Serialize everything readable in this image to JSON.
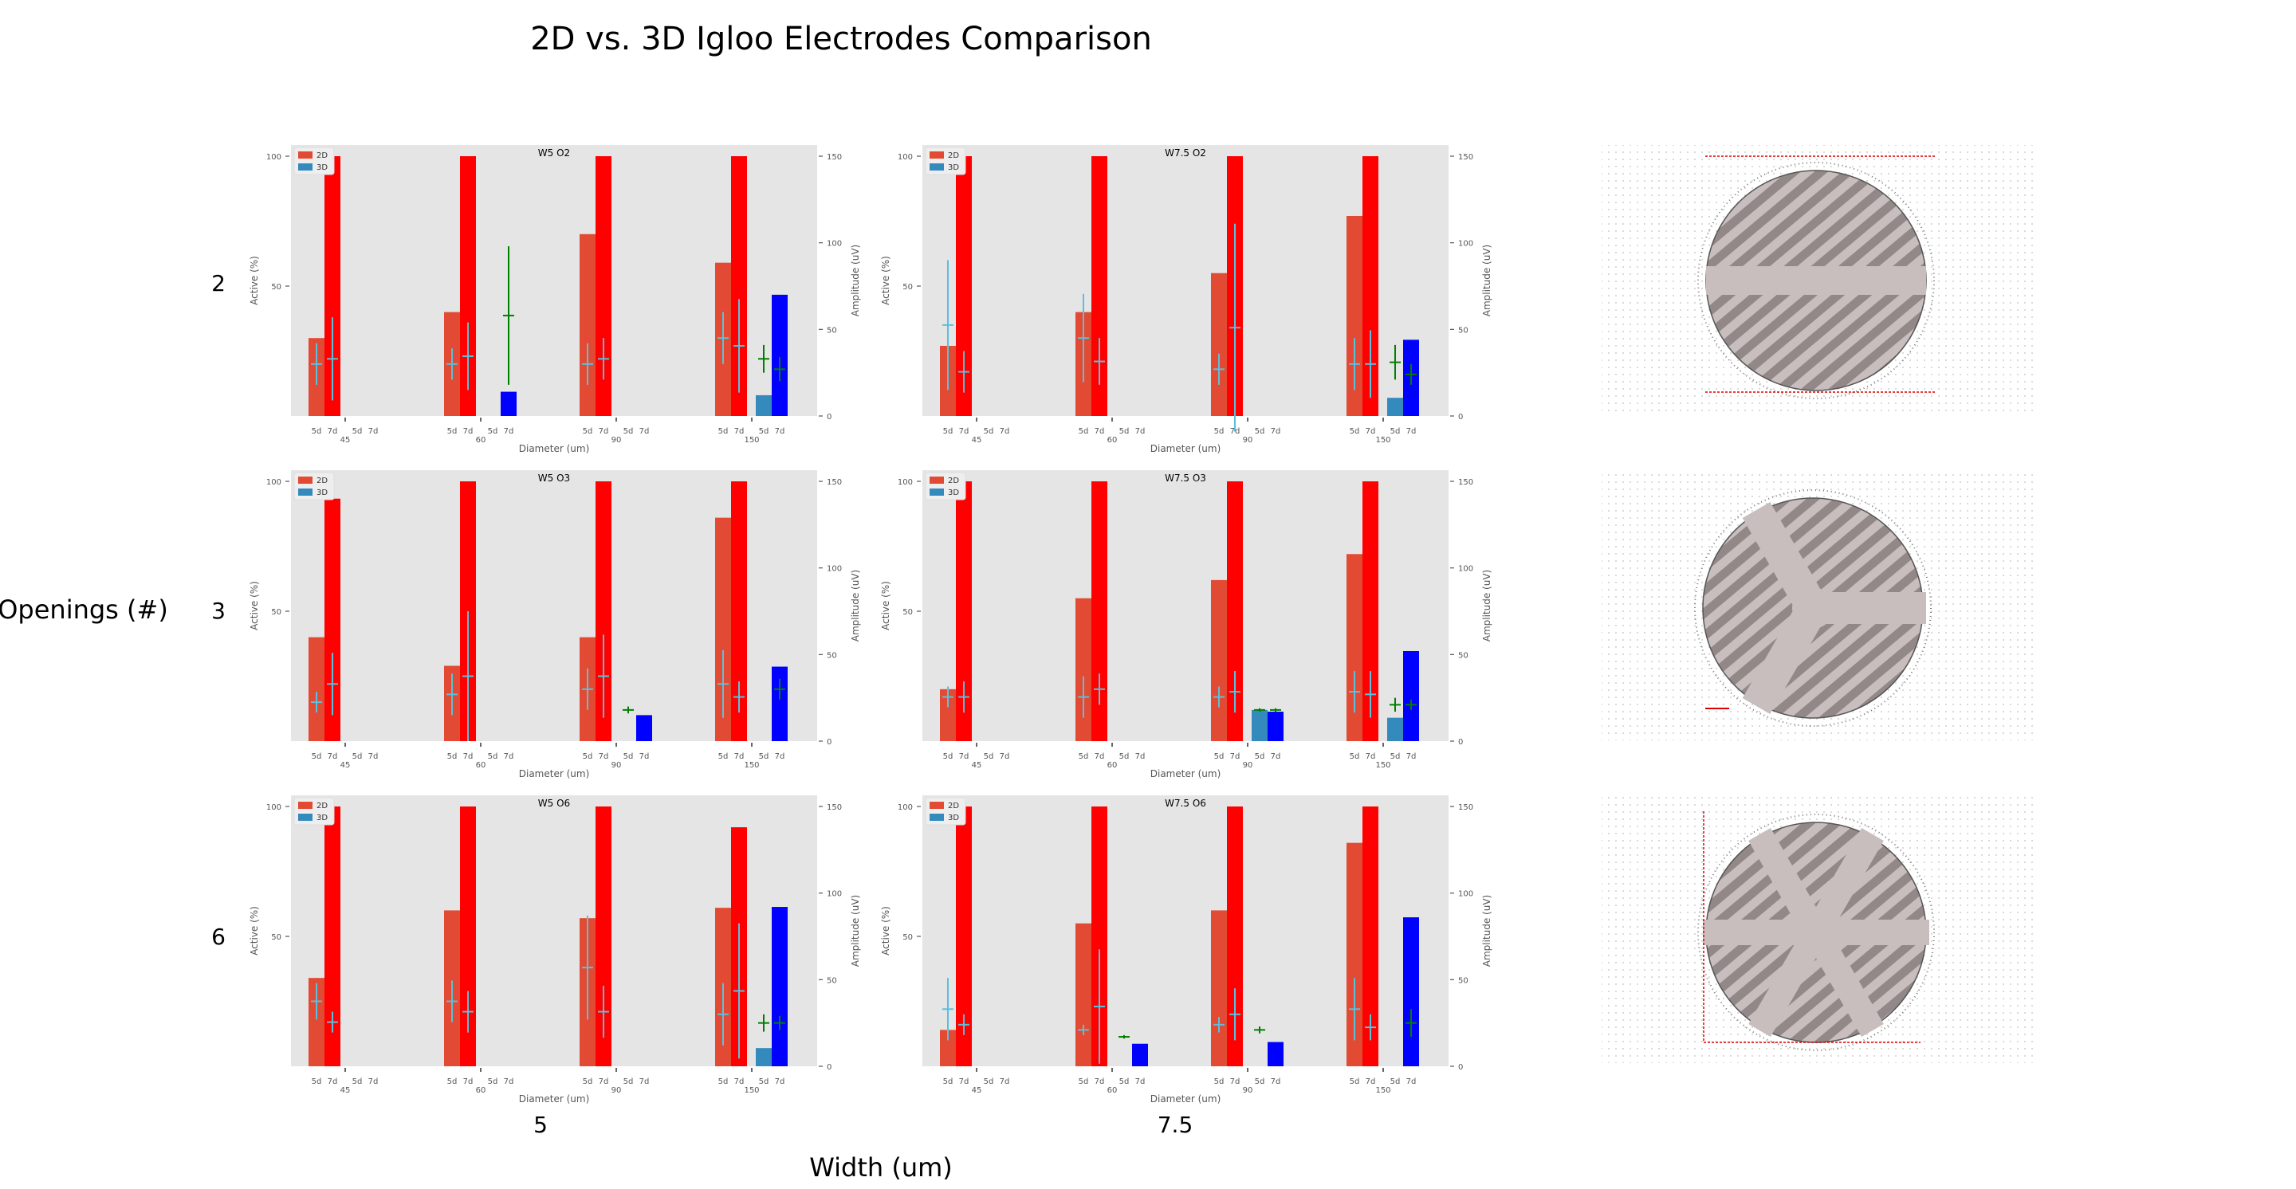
{
  "figure": {
    "title": "2D vs. 3D Igloo Electrodes Comparison",
    "row_axis_label": "Openings (#)",
    "col_axis_label": "Width (um)",
    "row_labels": [
      "2",
      "3",
      "6"
    ],
    "col_labels": [
      "5",
      "7.5"
    ]
  },
  "colors": {
    "panel_bg": "#e5e5e5",
    "active_2d": "#e24a33",
    "active_3d": "#348abd",
    "amp_2d": "#ff0000",
    "amp_3d": "#0000ff",
    "err_active": "#5bc0de",
    "err_amp_3d": "#008000",
    "axis_text": "#555555",
    "electrode_disc": "#c8bebe",
    "electrode_hatch": "#8a7f7f"
  },
  "legend": {
    "entries": [
      "2D",
      "3D"
    ]
  },
  "chart_data": [
    {
      "type": "bar",
      "title": "W5 O2",
      "xlabel": "Diameter (um)",
      "ylabel_left": "Active (%)",
      "ylabel_right": "Amplitude (uV)",
      "ylim_left": [
        0,
        100
      ],
      "ylim_right": [
        0,
        150
      ],
      "yticks_left": [
        50,
        100
      ],
      "yticks_right": [
        0,
        50,
        100,
        150
      ],
      "groups": [
        "45",
        "60",
        "90",
        "150"
      ],
      "subgroup_labels": [
        "5d",
        "7d",
        "5d",
        "7d"
      ],
      "active_2d": [
        {
          "v": 30,
          "e": null
        },
        {
          "v": 40,
          "e": null
        },
        {
          "v": 70,
          "e": null
        },
        {
          "v": 59,
          "e": null
        }
      ],
      "amplitude_2d": [
        {
          "v": 150,
          "e": null
        },
        {
          "v": 150,
          "e": null
        },
        {
          "v": 150,
          "e": null
        },
        {
          "v": 150,
          "e": null
        }
      ],
      "active_3d": [
        null,
        null,
        null,
        {
          "v": 8,
          "e": null
        }
      ],
      "amplitude_3d": [
        null,
        {
          "v": 14,
          "e": null
        },
        null,
        {
          "v": 70,
          "e": null
        }
      ],
      "errorbars": [
        {
          "g": 0,
          "slot": 0,
          "y": 20,
          "e": 8,
          "axis": "left",
          "color": "err_active"
        },
        {
          "g": 0,
          "slot": 1,
          "y": 22,
          "e": 16,
          "axis": "left",
          "color": "err_active"
        },
        {
          "g": 1,
          "slot": 0,
          "y": 20,
          "e": 6,
          "axis": "left",
          "color": "err_active"
        },
        {
          "g": 1,
          "slot": 1,
          "y": 23,
          "e": 13,
          "axis": "left",
          "color": "err_active"
        },
        {
          "g": 1,
          "slot": 3,
          "y": 58,
          "e": 40,
          "axis": "right",
          "color": "err_amp_3d"
        },
        {
          "g": 2,
          "slot": 0,
          "y": 20,
          "e": 8,
          "axis": "left",
          "color": "err_active"
        },
        {
          "g": 2,
          "slot": 1,
          "y": 22,
          "e": 8,
          "axis": "left",
          "color": "err_active"
        },
        {
          "g": 3,
          "slot": 0,
          "y": 30,
          "e": 10,
          "axis": "left",
          "color": "err_active"
        },
        {
          "g": 3,
          "slot": 1,
          "y": 27,
          "e": 18,
          "axis": "left",
          "color": "err_active"
        },
        {
          "g": 3,
          "slot": 2,
          "y": 33,
          "e": 8,
          "axis": "right",
          "color": "err_amp_3d"
        },
        {
          "g": 3,
          "slot": 3,
          "y": 27,
          "e": 7,
          "axis": "right",
          "color": "err_amp_3d"
        }
      ]
    },
    {
      "type": "bar",
      "title": "W7.5 O2",
      "xlabel": "Diameter (um)",
      "ylabel_left": "Active (%)",
      "ylabel_right": "Amplitude (uV)",
      "ylim_left": [
        0,
        100
      ],
      "ylim_right": [
        0,
        150
      ],
      "yticks_left": [
        50,
        100
      ],
      "yticks_right": [
        0,
        50,
        100,
        150
      ],
      "groups": [
        "45",
        "60",
        "90",
        "150"
      ],
      "subgroup_labels": [
        "5d",
        "7d",
        "5d",
        "7d"
      ],
      "active_2d": [
        {
          "v": 27,
          "e": null
        },
        {
          "v": 40,
          "e": null
        },
        {
          "v": 55,
          "e": null
        },
        {
          "v": 77,
          "e": null
        }
      ],
      "amplitude_2d": [
        {
          "v": 150,
          "e": null
        },
        {
          "v": 150,
          "e": null
        },
        {
          "v": 150,
          "e": null
        },
        {
          "v": 150,
          "e": null
        }
      ],
      "active_3d": [
        null,
        null,
        null,
        {
          "v": 7,
          "e": null
        }
      ],
      "amplitude_3d": [
        null,
        null,
        null,
        {
          "v": 44,
          "e": null
        }
      ],
      "errorbars": [
        {
          "g": 0,
          "slot": 0,
          "y": 35,
          "e": 25,
          "axis": "left",
          "color": "err_active"
        },
        {
          "g": 0,
          "slot": 1,
          "y": 17,
          "e": 8,
          "axis": "left",
          "color": "err_active"
        },
        {
          "g": 1,
          "slot": 0,
          "y": 30,
          "e": 17,
          "axis": "left",
          "color": "err_active"
        },
        {
          "g": 1,
          "slot": 1,
          "y": 21,
          "e": 9,
          "axis": "left",
          "color": "err_active"
        },
        {
          "g": 2,
          "slot": 0,
          "y": 18,
          "e": 6,
          "axis": "left",
          "color": "err_active"
        },
        {
          "g": 2,
          "slot": 1,
          "y": 34,
          "e": 40,
          "axis": "left",
          "color": "err_active"
        },
        {
          "g": 3,
          "slot": 0,
          "y": 20,
          "e": 10,
          "axis": "left",
          "color": "err_active"
        },
        {
          "g": 3,
          "slot": 1,
          "y": 20,
          "e": 13,
          "axis": "left",
          "color": "err_active"
        },
        {
          "g": 3,
          "slot": 2,
          "y": 31,
          "e": 10,
          "axis": "right",
          "color": "err_amp_3d"
        },
        {
          "g": 3,
          "slot": 3,
          "y": 24,
          "e": 6,
          "axis": "right",
          "color": "err_amp_3d"
        }
      ]
    },
    {
      "type": "bar",
      "title": "W5 O3",
      "xlabel": "Diameter (um)",
      "ylabel_left": "Active (%)",
      "ylabel_right": "Amplitude (uV)",
      "ylim_left": [
        0,
        100
      ],
      "ylim_right": [
        0,
        150
      ],
      "yticks_left": [
        50,
        100
      ],
      "yticks_right": [
        0,
        50,
        100,
        150
      ],
      "groups": [
        "45",
        "60",
        "90",
        "150"
      ],
      "subgroup_labels": [
        "5d",
        "7d",
        "5d",
        "7d"
      ],
      "active_2d": [
        {
          "v": 40,
          "e": null
        },
        {
          "v": 29,
          "e": null
        },
        {
          "v": 40,
          "e": null
        },
        {
          "v": 86,
          "e": null
        }
      ],
      "amplitude_2d": [
        {
          "v": 140,
          "e": null
        },
        {
          "v": 150,
          "e": null
        },
        {
          "v": 150,
          "e": null
        },
        {
          "v": 150,
          "e": null
        }
      ],
      "active_3d": [
        null,
        null,
        null,
        null
      ],
      "amplitude_3d": [
        null,
        null,
        {
          "v": 15,
          "e": null
        },
        {
          "v": 43,
          "e": null
        }
      ],
      "errorbars": [
        {
          "g": 0,
          "slot": 0,
          "y": 15,
          "e": 4,
          "axis": "left",
          "color": "err_active"
        },
        {
          "g": 0,
          "slot": 1,
          "y": 22,
          "e": 12,
          "axis": "left",
          "color": "err_active"
        },
        {
          "g": 1,
          "slot": 0,
          "y": 18,
          "e": 8,
          "axis": "left",
          "color": "err_active"
        },
        {
          "g": 1,
          "slot": 1,
          "y": 25,
          "e": 25,
          "axis": "left",
          "color": "err_active"
        },
        {
          "g": 2,
          "slot": 0,
          "y": 20,
          "e": 8,
          "axis": "left",
          "color": "err_active"
        },
        {
          "g": 2,
          "slot": 1,
          "y": 25,
          "e": 16,
          "axis": "left",
          "color": "err_active"
        },
        {
          "g": 2,
          "slot": 2,
          "y": 18,
          "e": 2,
          "axis": "right",
          "color": "err_amp_3d"
        },
        {
          "g": 3,
          "slot": 0,
          "y": 22,
          "e": 13,
          "axis": "left",
          "color": "err_active"
        },
        {
          "g": 3,
          "slot": 1,
          "y": 17,
          "e": 6,
          "axis": "left",
          "color": "err_active"
        },
        {
          "g": 3,
          "slot": 3,
          "y": 30,
          "e": 6,
          "axis": "right",
          "color": "err_amp_3d"
        }
      ]
    },
    {
      "type": "bar",
      "title": "W7.5 O3",
      "xlabel": "Diameter (um)",
      "ylabel_left": "Active (%)",
      "ylabel_right": "Amplitude (uV)",
      "ylim_left": [
        0,
        100
      ],
      "ylim_right": [
        0,
        150
      ],
      "yticks_left": [
        50,
        100
      ],
      "yticks_right": [
        0,
        50,
        100,
        150
      ],
      "groups": [
        "45",
        "60",
        "90",
        "150"
      ],
      "subgroup_labels": [
        "5d",
        "7d",
        "5d",
        "7d"
      ],
      "active_2d": [
        {
          "v": 20,
          "e": null
        },
        {
          "v": 55,
          "e": null
        },
        {
          "v": 62,
          "e": null
        },
        {
          "v": 72,
          "e": null
        }
      ],
      "amplitude_2d": [
        {
          "v": 150,
          "e": null
        },
        {
          "v": 150,
          "e": null
        },
        {
          "v": 150,
          "e": null
        },
        {
          "v": 150,
          "e": null
        }
      ],
      "active_3d": [
        null,
        null,
        {
          "v": 12,
          "e": null
        },
        {
          "v": 9,
          "e": null
        }
      ],
      "amplitude_3d": [
        null,
        null,
        {
          "v": 17,
          "e": null
        },
        {
          "v": 52,
          "e": null
        }
      ],
      "errorbars": [
        {
          "g": 0,
          "slot": 0,
          "y": 17,
          "e": 4,
          "axis": "left",
          "color": "err_active"
        },
        {
          "g": 0,
          "slot": 1,
          "y": 17,
          "e": 6,
          "axis": "left",
          "color": "err_active"
        },
        {
          "g": 1,
          "slot": 0,
          "y": 17,
          "e": 8,
          "axis": "left",
          "color": "err_active"
        },
        {
          "g": 1,
          "slot": 1,
          "y": 20,
          "e": 6,
          "axis": "left",
          "color": "err_active"
        },
        {
          "g": 2,
          "slot": 0,
          "y": 17,
          "e": 4,
          "axis": "left",
          "color": "err_active"
        },
        {
          "g": 2,
          "slot": 1,
          "y": 19,
          "e": 8,
          "axis": "left",
          "color": "err_active"
        },
        {
          "g": 2,
          "slot": 2,
          "y": 18,
          "e": 1,
          "axis": "right",
          "color": "err_amp_3d"
        },
        {
          "g": 2,
          "slot": 3,
          "y": 18,
          "e": 1,
          "axis": "right",
          "color": "err_amp_3d"
        },
        {
          "g": 3,
          "slot": 0,
          "y": 19,
          "e": 8,
          "axis": "left",
          "color": "err_active"
        },
        {
          "g": 3,
          "slot": 1,
          "y": 18,
          "e": 9,
          "axis": "left",
          "color": "err_active"
        },
        {
          "g": 3,
          "slot": 2,
          "y": 21,
          "e": 4,
          "axis": "right",
          "color": "err_amp_3d"
        },
        {
          "g": 3,
          "slot": 3,
          "y": 21,
          "e": 3,
          "axis": "right",
          "color": "err_amp_3d"
        }
      ]
    },
    {
      "type": "bar",
      "title": "W5 O6",
      "xlabel": "Diameter (um)",
      "ylabel_left": "Active (%)",
      "ylabel_right": "Amplitude (uV)",
      "ylim_left": [
        0,
        100
      ],
      "ylim_right": [
        0,
        150
      ],
      "yticks_left": [
        50,
        100
      ],
      "yticks_right": [
        0,
        50,
        100,
        150
      ],
      "groups": [
        "45",
        "60",
        "90",
        "150"
      ],
      "subgroup_labels": [
        "5d",
        "7d",
        "5d",
        "7d"
      ],
      "active_2d": [
        {
          "v": 34,
          "e": null
        },
        {
          "v": 60,
          "e": null
        },
        {
          "v": 57,
          "e": null
        },
        {
          "v": 61,
          "e": null
        }
      ],
      "amplitude_2d": [
        {
          "v": 150,
          "e": null
        },
        {
          "v": 150,
          "e": null
        },
        {
          "v": 150,
          "e": null
        },
        {
          "v": 138,
          "e": null
        }
      ],
      "active_3d": [
        null,
        null,
        null,
        {
          "v": 7,
          "e": null
        }
      ],
      "amplitude_3d": [
        null,
        null,
        null,
        {
          "v": 92,
          "e": null
        }
      ],
      "errorbars": [
        {
          "g": 0,
          "slot": 0,
          "y": 25,
          "e": 7,
          "axis": "left",
          "color": "err_active"
        },
        {
          "g": 0,
          "slot": 1,
          "y": 17,
          "e": 4,
          "axis": "left",
          "color": "err_active"
        },
        {
          "g": 1,
          "slot": 0,
          "y": 25,
          "e": 8,
          "axis": "left",
          "color": "err_active"
        },
        {
          "g": 1,
          "slot": 1,
          "y": 21,
          "e": 8,
          "axis": "left",
          "color": "err_active"
        },
        {
          "g": 2,
          "slot": 0,
          "y": 38,
          "e": 20,
          "axis": "left",
          "color": "err_active"
        },
        {
          "g": 2,
          "slot": 1,
          "y": 21,
          "e": 10,
          "axis": "left",
          "color": "err_active"
        },
        {
          "g": 3,
          "slot": 0,
          "y": 20,
          "e": 12,
          "axis": "left",
          "color": "err_active"
        },
        {
          "g": 3,
          "slot": 1,
          "y": 29,
          "e": 26,
          "axis": "left",
          "color": "err_active"
        },
        {
          "g": 3,
          "slot": 2,
          "y": 25,
          "e": 5,
          "axis": "right",
          "color": "err_amp_3d"
        },
        {
          "g": 3,
          "slot": 3,
          "y": 25,
          "e": 4,
          "axis": "right",
          "color": "err_amp_3d"
        }
      ]
    },
    {
      "type": "bar",
      "title": "W7.5 O6",
      "xlabel": "Diameter (um)",
      "ylabel_left": "Active (%)",
      "ylabel_right": "Amplitude (uV)",
      "ylim_left": [
        0,
        100
      ],
      "ylim_right": [
        0,
        150
      ],
      "yticks_left": [
        50,
        100
      ],
      "yticks_right": [
        0,
        50,
        100,
        150
      ],
      "groups": [
        "45",
        "60",
        "90",
        "150"
      ],
      "subgroup_labels": [
        "5d",
        "7d",
        "5d",
        "7d"
      ],
      "active_2d": [
        {
          "v": 14,
          "e": null
        },
        {
          "v": 55,
          "e": null
        },
        {
          "v": 60,
          "e": null
        },
        {
          "v": 86,
          "e": null
        }
      ],
      "amplitude_2d": [
        {
          "v": 150,
          "e": null
        },
        {
          "v": 150,
          "e": null
        },
        {
          "v": 150,
          "e": null
        },
        {
          "v": 150,
          "e": null
        }
      ],
      "active_3d": [
        null,
        null,
        null,
        null
      ],
      "amplitude_3d": [
        null,
        {
          "v": 13,
          "e": null
        },
        {
          "v": 14,
          "e": null
        },
        {
          "v": 86,
          "e": null
        }
      ],
      "errorbars": [
        {
          "g": 0,
          "slot": 0,
          "y": 22,
          "e": 12,
          "axis": "left",
          "color": "err_active"
        },
        {
          "g": 0,
          "slot": 1,
          "y": 16,
          "e": 4,
          "axis": "left",
          "color": "err_active"
        },
        {
          "g": 1,
          "slot": 0,
          "y": 14,
          "e": 2,
          "axis": "left",
          "color": "err_active"
        },
        {
          "g": 1,
          "slot": 1,
          "y": 23,
          "e": 22,
          "axis": "left",
          "color": "err_active"
        },
        {
          "g": 1,
          "slot": 2,
          "y": 17,
          "e": 1,
          "axis": "right",
          "color": "err_amp_3d"
        },
        {
          "g": 2,
          "slot": 0,
          "y": 16,
          "e": 3,
          "axis": "left",
          "color": "err_active"
        },
        {
          "g": 2,
          "slot": 1,
          "y": 20,
          "e": 10,
          "axis": "left",
          "color": "err_active"
        },
        {
          "g": 2,
          "slot": 2,
          "y": 21,
          "e": 2,
          "axis": "right",
          "color": "err_amp_3d"
        },
        {
          "g": 3,
          "slot": 0,
          "y": 22,
          "e": 12,
          "axis": "left",
          "color": "err_active"
        },
        {
          "g": 3,
          "slot": 1,
          "y": 15,
          "e": 5,
          "axis": "left",
          "color": "err_active"
        },
        {
          "g": 3,
          "slot": 3,
          "y": 25,
          "e": 8,
          "axis": "right",
          "color": "err_amp_3d"
        }
      ]
    }
  ],
  "electrode_images": [
    {
      "openings": 2
    },
    {
      "openings": 3
    },
    {
      "openings": 6
    }
  ]
}
